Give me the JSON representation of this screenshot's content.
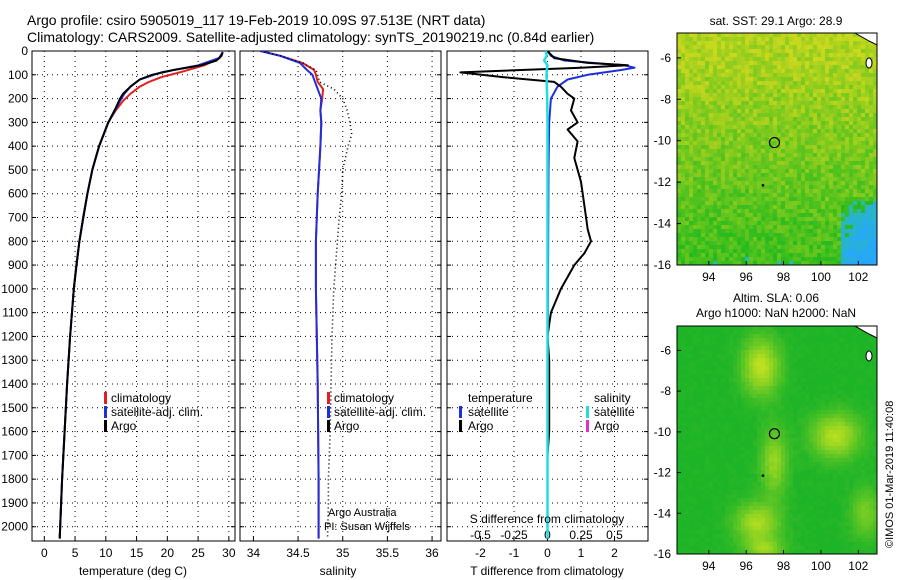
{
  "title": {
    "line1": "Argo profile: csiro 5905019_117 19-Feb-2019 10.09S 97.513E (NRT data)",
    "line2": "Climatology: CARS2009. Satellite-adjusted climatology: synTS_20190219.nc (0.84d earlier)"
  },
  "colors": {
    "climatology": "#e32020",
    "satellite": "#2030d8",
    "argo": "#000000",
    "salinity_sat": "#22dddd",
    "salinity_argo": "#e030c8"
  },
  "depth_ticks": [
    "0",
    "100",
    "200",
    "300",
    "400",
    "500",
    "600",
    "700",
    "800",
    "900",
    "1000",
    "1100",
    "1200",
    "1300",
    "1400",
    "1500",
    "1600",
    "1700",
    "1800",
    "1900",
    "2000"
  ],
  "chart_data": [
    {
      "type": "line",
      "name": "temperature-profile",
      "xlabel": "temperature (deg C)",
      "ylabel": "depth",
      "xlim": [
        -2,
        31
      ],
      "ylim": [
        2060,
        0
      ],
      "xticks": [
        "0",
        "5",
        "10",
        "15",
        "20",
        "25",
        "30"
      ],
      "legend": {
        "placement": "bottom-center",
        "entries": [
          "climatology",
          "satellite-adj. clim.",
          "Argo"
        ]
      },
      "series": [
        {
          "name": "climatology",
          "depth": [
            5,
            30,
            60,
            90,
            110,
            130,
            150,
            180,
            210,
            250,
            300,
            400,
            500,
            600,
            700,
            800,
            900,
            1000,
            1200,
            1400,
            1600,
            1800,
            2050
          ],
          "values": [
            29.0,
            28.5,
            26.0,
            22.0,
            19.0,
            17.0,
            15.5,
            14.0,
            12.8,
            11.6,
            10.4,
            8.9,
            7.8,
            7.0,
            6.3,
            5.7,
            5.2,
            4.8,
            4.2,
            3.7,
            3.3,
            2.9,
            2.5
          ]
        },
        {
          "name": "satellite-adj. clim.",
          "depth": [
            5,
            30,
            60,
            90,
            120,
            150,
            180,
            210,
            250,
            300,
            400,
            500,
            600,
            700,
            800,
            900,
            1000,
            1200,
            1400,
            1600,
            1800,
            2050
          ],
          "values": [
            29.0,
            28.4,
            25.0,
            19.0,
            15.5,
            14.0,
            13.0,
            12.3,
            11.5,
            10.4,
            8.9,
            7.8,
            7.0,
            6.3,
            5.7,
            5.2,
            4.8,
            4.2,
            3.7,
            3.3,
            2.9,
            2.5
          ]
        },
        {
          "name": "Argo",
          "depth": [
            5,
            20,
            40,
            60,
            80,
            100,
            120,
            150,
            180,
            200,
            240,
            300,
            400,
            500,
            600,
            800,
            1000,
            1200,
            1400,
            1600,
            1800,
            2050
          ],
          "values": [
            29.0,
            28.8,
            28.0,
            25.5,
            21.0,
            17.5,
            15.5,
            14.0,
            12.8,
            12.3,
            11.6,
            10.4,
            8.9,
            7.8,
            7.0,
            5.7,
            4.8,
            4.2,
            3.7,
            3.3,
            2.9,
            2.5
          ]
        }
      ]
    },
    {
      "type": "line",
      "name": "salinity-profile",
      "xlabel": "salinity",
      "ylabel": "depth",
      "xlim": [
        33.85,
        36.1
      ],
      "ylim": [
        2060,
        0
      ],
      "xticks": [
        "34",
        "34.5",
        "35",
        "35.5",
        "36"
      ],
      "legend": {
        "placement": "bottom-center",
        "entries": [
          "climatology",
          "satellite-adj. clim.",
          "Argo"
        ]
      },
      "annotations": [
        "Argo Australia",
        "PI: Susan Wijffels"
      ],
      "series": [
        {
          "name": "climatology",
          "depth": [
            0,
            20,
            50,
            80,
            100,
            130,
            160,
            200,
            250,
            300,
            400,
            600,
            800,
            1000,
            1400,
            1800,
            2050
          ],
          "values": [
            34.08,
            34.3,
            34.55,
            34.68,
            34.7,
            34.72,
            34.78,
            34.77,
            34.75,
            34.76,
            34.75,
            34.72,
            34.7,
            34.7,
            34.72,
            34.73,
            34.73
          ]
        },
        {
          "name": "satellite-adj. clim.",
          "depth": [
            0,
            20,
            50,
            80,
            100,
            130,
            160,
            200,
            250,
            300,
            400,
            600,
            800,
            1000,
            1400,
            1800,
            2050
          ],
          "values": [
            34.08,
            34.3,
            34.52,
            34.6,
            34.66,
            34.69,
            34.72,
            34.76,
            34.75,
            34.76,
            34.75,
            34.72,
            34.7,
            34.7,
            34.72,
            34.73,
            34.73
          ]
        },
        {
          "name": "Argo",
          "depth": [
            0,
            20,
            50,
            80,
            100,
            130,
            160,
            200,
            250,
            300,
            350,
            400,
            500,
            600,
            700,
            800,
            900,
            1000,
            1200,
            1400,
            1600,
            1800,
            1900,
            2050
          ],
          "values": [
            34.08,
            34.3,
            34.55,
            34.7,
            34.72,
            34.74,
            34.9,
            35.0,
            35.05,
            35.08,
            35.1,
            35.06,
            35.0,
            34.99,
            34.96,
            34.94,
            34.92,
            34.9,
            34.88,
            34.87,
            34.86,
            34.84,
            34.84,
            34.83
          ]
        }
      ]
    },
    {
      "type": "line",
      "name": "difference-profile",
      "xlabel": "T difference from climatology",
      "xlabel2": "S difference from climatology",
      "xlim": [
        -3,
        3
      ],
      "ylim": [
        2060,
        0
      ],
      "xticks": [
        "-2",
        "-1",
        "0",
        "1",
        "2"
      ],
      "xticks2": [
        "-0.5",
        "-0.25",
        "0",
        "0.25",
        "0.5"
      ],
      "legend": {
        "placement": "bottom",
        "temperature": "temperature",
        "salinity": "salinity",
        "entries_t": [
          "satellite",
          "Argo"
        ],
        "entries_s": [
          "satellite",
          "Argo"
        ]
      },
      "series": [
        {
          "name": "T satellite",
          "depth": [
            0,
            20,
            40,
            55,
            60,
            70,
            80,
            100,
            120,
            150,
            200,
            300,
            500,
            800,
            1200,
            1600,
            2050
          ],
          "values": [
            0,
            0.1,
            0.5,
            1.8,
            2.3,
            2.6,
            2.2,
            1.2,
            0.6,
            0.3,
            0.1,
            0.05,
            0.03,
            0.02,
            0.01,
            0,
            0
          ]
        },
        {
          "name": "T Argo",
          "depth": [
            0,
            30,
            50,
            60,
            70,
            90,
            110,
            130,
            150,
            180,
            200,
            250,
            300,
            330,
            380,
            450,
            550,
            650,
            750,
            800,
            850,
            900,
            950,
            1000,
            1100,
            1200,
            1300,
            1400,
            1500,
            1600,
            1700,
            1800,
            1900,
            2000,
            2050
          ],
          "values": [
            0,
            0.2,
            1.2,
            2.4,
            1.0,
            -2.6,
            -1.3,
            0.2,
            0.4,
            0.6,
            0.8,
            0.7,
            0.9,
            0.6,
            0.9,
            0.8,
            1.0,
            1.1,
            1.2,
            1.3,
            1.1,
            0.8,
            0.6,
            0.4,
            0.1,
            0.0,
            0.05,
            0.05,
            0.05,
            0.05,
            0.0,
            0.0,
            0.0,
            0.0,
            0.0
          ]
        },
        {
          "name": "S satellite",
          "depth": [
            0,
            20,
            40,
            60,
            80,
            100,
            150,
            200,
            300,
            500,
            1000,
            1500,
            2050
          ],
          "values": [
            -0.05,
            -0.02,
            -0.1,
            0.0,
            -0.02,
            -0.03,
            -0.02,
            -0.01,
            0,
            0,
            0,
            0,
            0
          ]
        }
      ]
    },
    {
      "type": "heatmap",
      "name": "sst-map",
      "title": "sat. SST: 29.1  Argo: 28.9",
      "xlim": [
        92.3,
        103
      ],
      "ylim": [
        -16,
        -4.8
      ],
      "xticks": [
        "94",
        "96",
        "98",
        "100",
        "102"
      ],
      "yticks": [
        "-6",
        "-8",
        "-10",
        "-12",
        "-14",
        "-16"
      ],
      "argo_position": {
        "lon": 97.513,
        "lat": -10.09
      }
    },
    {
      "type": "heatmap",
      "name": "sla-map",
      "title": "Altim. SLA: 0.06",
      "subtitle": "Argo h1000: NaN  h2000: NaN",
      "xlim": [
        92.3,
        103
      ],
      "ylim": [
        -16,
        -4.8
      ],
      "xticks": [
        "94",
        "96",
        "98",
        "100",
        "102"
      ],
      "yticks": [
        "-6",
        "-8",
        "-10",
        "-12",
        "-14",
        "-16"
      ],
      "argo_position": {
        "lon": 97.513,
        "lat": -10.09
      }
    }
  ],
  "credit": "©IMOS 01-Mar-2019 11:40:08"
}
